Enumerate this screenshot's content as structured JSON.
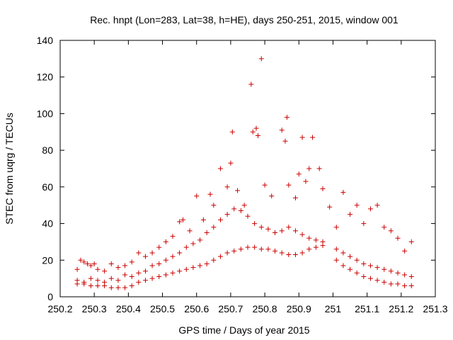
{
  "chart_data": {
    "type": "scatter",
    "title": "Rec. hnpt (Lon=283, Lat=38, h=HE), days 250-251, 2015, window 001",
    "xlabel": "GPS time / Days of year 2015",
    "ylabel": "STEC from uqrg / TECUs",
    "xlim": [
      250.2,
      251.3
    ],
    "ylim": [
      0,
      140
    ],
    "x_ticks": [
      "250.2",
      "250.3",
      "250.4",
      "250.5",
      "250.6",
      "250.7",
      "250.8",
      "250.9",
      "251",
      "251.1",
      "251.2",
      "251.3"
    ],
    "y_ticks": [
      "0",
      "20",
      "40",
      "60",
      "80",
      "100",
      "120",
      "140"
    ],
    "grid": false,
    "marker": "plus",
    "color": "#cc0000",
    "series": [
      {
        "points": [
          [
            250.25,
            15
          ],
          [
            250.26,
            20
          ],
          [
            250.27,
            19
          ],
          [
            250.28,
            18
          ],
          [
            250.29,
            17
          ],
          [
            250.3,
            18
          ],
          [
            250.31,
            15
          ],
          [
            250.33,
            14
          ],
          [
            250.35,
            18
          ],
          [
            250.37,
            16
          ],
          [
            250.39,
            17
          ],
          [
            250.41,
            19
          ],
          [
            250.43,
            24
          ],
          [
            250.45,
            22
          ],
          [
            250.47,
            24
          ],
          [
            250.49,
            27
          ],
          [
            250.51,
            30
          ],
          [
            250.53,
            33
          ],
          [
            250.55,
            41
          ],
          [
            250.56,
            42
          ],
          [
            250.58,
            36
          ],
          [
            250.6,
            55
          ],
          [
            250.62,
            42
          ],
          [
            250.64,
            56
          ],
          [
            250.65,
            50
          ],
          [
            250.67,
            70
          ],
          [
            250.69,
            60
          ],
          [
            250.7,
            73
          ],
          [
            250.705,
            90
          ],
          [
            250.72,
            58
          ],
          [
            250.74,
            50
          ],
          [
            250.76,
            116
          ],
          [
            250.765,
            90
          ],
          [
            250.775,
            92
          ],
          [
            250.78,
            88
          ],
          [
            250.79,
            130
          ],
          [
            250.8,
            61
          ],
          [
            250.82,
            55
          ],
          [
            250.85,
            91
          ],
          [
            250.86,
            85
          ],
          [
            250.865,
            98
          ],
          [
            250.87,
            61
          ],
          [
            250.89,
            54
          ],
          [
            250.9,
            67
          ],
          [
            250.91,
            87
          ],
          [
            250.92,
            63
          ],
          [
            250.93,
            70
          ],
          [
            250.94,
            87
          ],
          [
            250.96,
            70
          ],
          [
            250.97,
            59
          ],
          [
            250.99,
            49
          ],
          [
            251.01,
            38
          ],
          [
            251.03,
            57
          ],
          [
            251.05,
            45
          ],
          [
            251.07,
            50
          ],
          [
            251.09,
            40
          ],
          [
            251.11,
            48
          ],
          [
            251.13,
            50
          ],
          [
            251.15,
            38
          ],
          [
            251.17,
            36
          ],
          [
            251.19,
            32
          ],
          [
            251.21,
            25
          ],
          [
            251.23,
            30
          ],
          [
            250.25,
            9
          ],
          [
            250.27,
            8
          ],
          [
            250.29,
            10
          ],
          [
            250.31,
            9
          ],
          [
            250.33,
            8
          ],
          [
            250.35,
            10
          ],
          [
            250.37,
            9
          ],
          [
            250.39,
            12
          ],
          [
            250.41,
            11
          ],
          [
            250.43,
            13
          ],
          [
            250.45,
            14
          ],
          [
            250.47,
            17
          ],
          [
            250.49,
            18
          ],
          [
            250.51,
            20
          ],
          [
            250.53,
            22
          ],
          [
            250.55,
            24
          ],
          [
            250.57,
            27
          ],
          [
            250.59,
            29
          ],
          [
            250.61,
            31
          ],
          [
            250.63,
            35
          ],
          [
            250.65,
            38
          ],
          [
            250.67,
            42
          ],
          [
            250.69,
            45
          ],
          [
            250.71,
            48
          ],
          [
            250.73,
            47
          ],
          [
            250.75,
            44
          ],
          [
            250.77,
            40
          ],
          [
            250.79,
            38
          ],
          [
            250.81,
            37
          ],
          [
            250.83,
            35
          ],
          [
            250.85,
            36
          ],
          [
            250.87,
            38
          ],
          [
            250.89,
            36
          ],
          [
            250.91,
            34
          ],
          [
            250.93,
            32
          ],
          [
            250.95,
            31
          ],
          [
            250.97,
            30
          ],
          [
            251.01,
            26
          ],
          [
            251.03,
            24
          ],
          [
            251.05,
            22
          ],
          [
            251.07,
            20
          ],
          [
            251.09,
            18
          ],
          [
            251.11,
            17
          ],
          [
            251.13,
            16
          ],
          [
            251.15,
            15
          ],
          [
            251.17,
            14
          ],
          [
            251.19,
            13
          ],
          [
            251.21,
            12
          ],
          [
            251.23,
            11
          ],
          [
            250.25,
            7
          ],
          [
            250.27,
            7
          ],
          [
            250.29,
            6
          ],
          [
            250.31,
            6
          ],
          [
            250.33,
            6
          ],
          [
            250.35,
            5
          ],
          [
            250.37,
            5
          ],
          [
            250.39,
            5
          ],
          [
            250.41,
            6
          ],
          [
            250.43,
            8
          ],
          [
            250.45,
            9
          ],
          [
            250.47,
            10
          ],
          [
            250.49,
            11
          ],
          [
            250.51,
            12
          ],
          [
            250.53,
            13
          ],
          [
            250.55,
            14
          ],
          [
            250.57,
            15
          ],
          [
            250.59,
            16
          ],
          [
            250.61,
            17
          ],
          [
            250.63,
            18
          ],
          [
            250.65,
            20
          ],
          [
            250.67,
            22
          ],
          [
            250.69,
            24
          ],
          [
            250.71,
            25
          ],
          [
            250.73,
            26
          ],
          [
            250.75,
            27
          ],
          [
            250.77,
            27
          ],
          [
            250.79,
            26
          ],
          [
            250.81,
            26
          ],
          [
            250.83,
            25
          ],
          [
            250.85,
            24
          ],
          [
            250.87,
            23
          ],
          [
            250.89,
            23
          ],
          [
            250.91,
            24
          ],
          [
            250.93,
            26
          ],
          [
            250.95,
            27
          ],
          [
            250.97,
            28
          ],
          [
            251.01,
            20
          ],
          [
            251.03,
            17
          ],
          [
            251.05,
            15
          ],
          [
            251.07,
            13
          ],
          [
            251.09,
            11
          ],
          [
            251.11,
            10
          ],
          [
            251.13,
            9
          ],
          [
            251.15,
            8
          ],
          [
            251.17,
            7
          ],
          [
            251.19,
            7
          ],
          [
            251.21,
            6
          ],
          [
            251.23,
            6
          ]
        ]
      }
    ]
  }
}
